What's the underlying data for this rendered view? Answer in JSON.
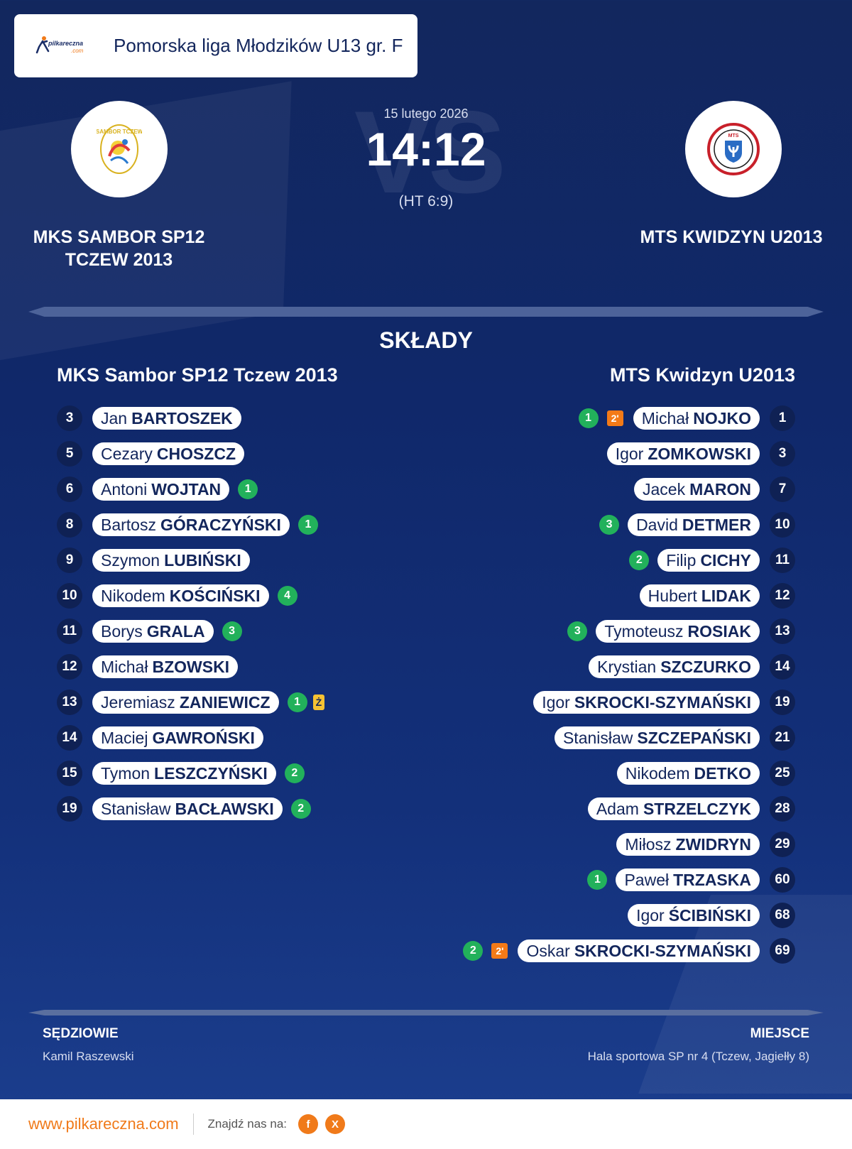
{
  "league": {
    "logo_text": "pilkareczna",
    "logo_sub": ".com",
    "name": "Pomorska liga Młodzików U13 gr. F"
  },
  "match": {
    "date": "15 lutego 2026",
    "score": "14:12",
    "halftime": "(HT 6:9)",
    "vs_watermark": "VS"
  },
  "home_team": {
    "name_line1": "MKS SAMBOR SP12",
    "name_line2": "TCZEW 2013",
    "lineup_title": "MKS Sambor SP12 Tczew 2013",
    "logo_text": "SAMBOR TCZEW",
    "players": [
      {
        "number": "3",
        "first": "Jan",
        "last": "BARTOSZEK",
        "goals": "",
        "penalty": "",
        "yellow": ""
      },
      {
        "number": "5",
        "first": "Cezary",
        "last": "CHOSZCZ",
        "goals": "",
        "penalty": "",
        "yellow": ""
      },
      {
        "number": "6",
        "first": "Antoni",
        "last": "WOJTAN",
        "goals": "1",
        "penalty": "",
        "yellow": ""
      },
      {
        "number": "8",
        "first": "Bartosz",
        "last": "GÓRACZYŃSKI",
        "goals": "1",
        "penalty": "",
        "yellow": ""
      },
      {
        "number": "9",
        "first": "Szymon",
        "last": "LUBIŃSKI",
        "goals": "",
        "penalty": "",
        "yellow": ""
      },
      {
        "number": "10",
        "first": "Nikodem",
        "last": "KOŚCIŃSKI",
        "goals": "4",
        "penalty": "",
        "yellow": ""
      },
      {
        "number": "11",
        "first": "Borys",
        "last": "GRALA",
        "goals": "3",
        "penalty": "",
        "yellow": ""
      },
      {
        "number": "12",
        "first": "Michał",
        "last": "BZOWSKI",
        "goals": "",
        "penalty": "",
        "yellow": ""
      },
      {
        "number": "13",
        "first": "Jeremiasz",
        "last": "ZANIEWICZ",
        "goals": "1",
        "penalty": "",
        "yellow": "Ż"
      },
      {
        "number": "14",
        "first": "Maciej",
        "last": "GAWROŃSKI",
        "goals": "",
        "penalty": "",
        "yellow": ""
      },
      {
        "number": "15",
        "first": "Tymon",
        "last": "LESZCZYŃSKI",
        "goals": "2",
        "penalty": "",
        "yellow": ""
      },
      {
        "number": "19",
        "first": "Stanisław",
        "last": "BACŁAWSKI",
        "goals": "2",
        "penalty": "",
        "yellow": ""
      }
    ]
  },
  "away_team": {
    "name_line1": "MTS KWIDZYN U2013",
    "lineup_title": "MTS Kwidzyn U2013",
    "logo_text": "MTS",
    "players": [
      {
        "number": "1",
        "first": "Michał",
        "last": "NOJKO",
        "goals": "1",
        "penalty": "2'",
        "yellow": ""
      },
      {
        "number": "3",
        "first": "Igor",
        "last": "ZOMKOWSKI",
        "goals": "",
        "penalty": "",
        "yellow": ""
      },
      {
        "number": "7",
        "first": "Jacek",
        "last": "MARON",
        "goals": "",
        "penalty": "",
        "yellow": ""
      },
      {
        "number": "10",
        "first": "David",
        "last": "DETMER",
        "goals": "3",
        "penalty": "",
        "yellow": ""
      },
      {
        "number": "11",
        "first": "Filip",
        "last": "CICHY",
        "goals": "2",
        "penalty": "",
        "yellow": ""
      },
      {
        "number": "12",
        "first": "Hubert",
        "last": "LIDAK",
        "goals": "",
        "penalty": "",
        "yellow": ""
      },
      {
        "number": "13",
        "first": "Tymoteusz",
        "last": "ROSIAK",
        "goals": "3",
        "penalty": "",
        "yellow": ""
      },
      {
        "number": "14",
        "first": "Krystian",
        "last": "SZCZURKO",
        "goals": "",
        "penalty": "",
        "yellow": ""
      },
      {
        "number": "19",
        "first": "Igor",
        "last": "SKROCKI-SZYMAŃSKI",
        "goals": "",
        "penalty": "",
        "yellow": ""
      },
      {
        "number": "21",
        "first": "Stanisław",
        "last": "SZCZEPAŃSKI",
        "goals": "",
        "penalty": "",
        "yellow": ""
      },
      {
        "number": "25",
        "first": "Nikodem",
        "last": "DETKO",
        "goals": "",
        "penalty": "",
        "yellow": ""
      },
      {
        "number": "28",
        "first": "Adam",
        "last": "STRZELCZYK",
        "goals": "",
        "penalty": "",
        "yellow": ""
      },
      {
        "number": "29",
        "first": "Miłosz",
        "last": "ZWIDRYN",
        "goals": "",
        "penalty": "",
        "yellow": ""
      },
      {
        "number": "60",
        "first": "Paweł",
        "last": "TRZASKA",
        "goals": "1",
        "penalty": "",
        "yellow": ""
      },
      {
        "number": "68",
        "first": "Igor",
        "last": "ŚCIBIŃSKI",
        "goals": "",
        "penalty": "",
        "yellow": ""
      },
      {
        "number": "69",
        "first": "Oskar",
        "last": "SKROCKI-SZYMAŃSKI",
        "goals": "2",
        "penalty": "2'",
        "yellow": ""
      }
    ]
  },
  "lineups_title": "SKŁADY",
  "referees": {
    "label": "SĘDZIOWIE",
    "value": "Kamil Raszewski"
  },
  "venue": {
    "label": "MIEJSCE",
    "value": "Hala sportowa SP nr 4 (Tczew, Jagiełły 8)"
  },
  "footer": {
    "url": "www.pilkareczna.com",
    "find_us": "Znajdź nas na:",
    "facebook": "f",
    "x": "X"
  },
  "colors": {
    "background": "#12275e",
    "accent": "#f07a1a",
    "goals": "#22b15b",
    "penalty": "#f47a17",
    "yellow_card": "#f6c233"
  }
}
